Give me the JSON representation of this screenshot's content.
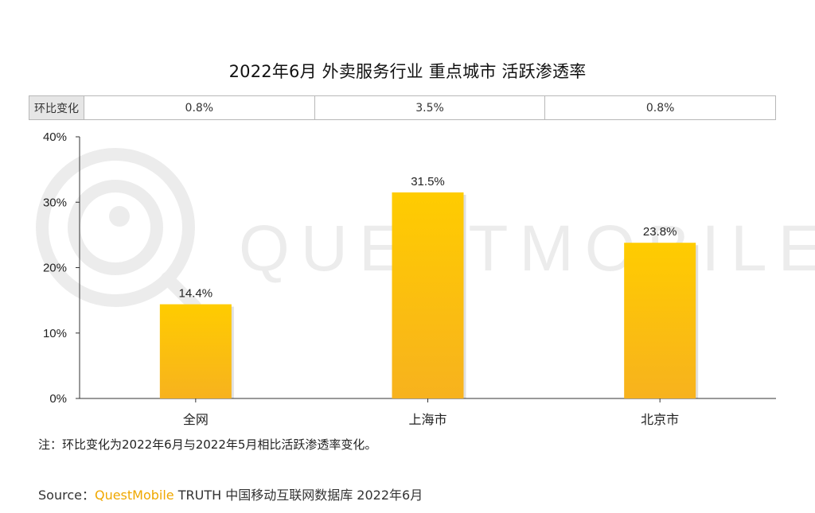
{
  "title": "2022年6月 外卖服务行业 重点城市 活跃渗透率",
  "mom": {
    "label": "环比变化",
    "values": [
      "0.8%",
      "3.5%",
      "0.8%"
    ]
  },
  "watermark": "QUESTMOBILE",
  "chart_data": {
    "type": "bar",
    "categories": [
      "全网",
      "上海市",
      "北京市"
    ],
    "values": [
      14.4,
      31.5,
      23.8
    ],
    "value_labels": [
      "14.4%",
      "31.5%",
      "23.8%"
    ],
    "ylim": [
      0,
      40
    ],
    "yticks": [
      "0%",
      "10%",
      "20%",
      "30%",
      "40%"
    ],
    "grid": false,
    "bar_color_top": "#ffcc00",
    "bar_color_bottom": "#f7b21e"
  },
  "note": "注：环比变化为2022年6月与2022年5月相比活跃渗透率变化。",
  "source": {
    "prefix": "Source：",
    "brand": "QuestMobile",
    "rest": " TRUTH 中国移动互联网数据库 2022年6月"
  }
}
